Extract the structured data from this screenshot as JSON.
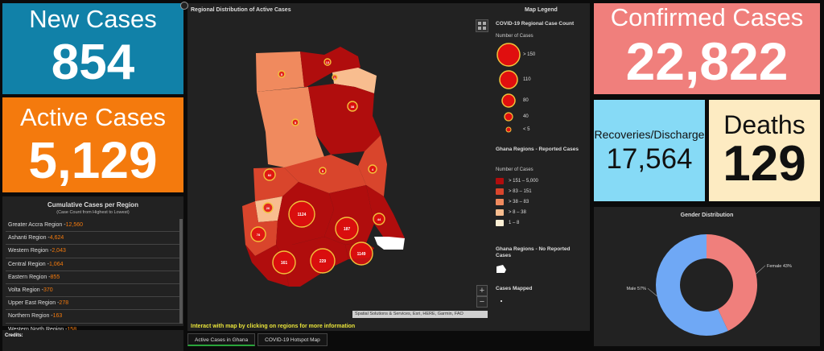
{
  "tiles": {
    "new_cases": {
      "label": "New Cases",
      "value": "854",
      "color": "#1181a8"
    },
    "active_cases": {
      "label": "Active Cases",
      "value": "5,129",
      "color": "#f47a0d"
    },
    "confirmed_cases": {
      "label": "Confirmed Cases",
      "value": "22,822",
      "color": "#f07f7c"
    },
    "recoveries": {
      "label": "Recoveries/Discharge",
      "value": "17,564",
      "color": "#86daf6"
    },
    "deaths": {
      "label": "Deaths",
      "value": "129",
      "color": "#fdebc2"
    }
  },
  "regions_panel": {
    "title": "Cumulative Cases per Region",
    "subtitle": "(Case Count from Highest to Lowest)",
    "rows": [
      {
        "name": "Greater Accra Region - ",
        "value": "12,560"
      },
      {
        "name": "Ashanti Region - ",
        "value": "4,624"
      },
      {
        "name": "Western Region - ",
        "value": "2,043"
      },
      {
        "name": "Central Region - ",
        "value": "1,064"
      },
      {
        "name": "Eastern Region - ",
        "value": "855"
      },
      {
        "name": "Volta Region - ",
        "value": "370"
      },
      {
        "name": "Upper East Region - ",
        "value": "278"
      },
      {
        "name": "Northern Region - ",
        "value": "163"
      },
      {
        "name": "Western North Region - ",
        "value": "158"
      }
    ]
  },
  "credits": {
    "label": "Credits:"
  },
  "map": {
    "title": "Regional Distribution of Active Cases",
    "interact_hint": "Interact with map by clicking on regions for more information",
    "attribution": "Spatial Solutions & Services, Esri, HERE, Garmin, FAO",
    "zoom_in": "+",
    "zoom_out": "−",
    "bubbles": [
      "1124",
      "187",
      "229",
      "161",
      "1149",
      "78",
      "26",
      "82",
      "44",
      "38",
      "5",
      "13",
      "4",
      "5",
      "5",
      "1"
    ]
  },
  "legend": {
    "title": "Map Legend",
    "count_heading": "COVID-19 Regional Case Count",
    "count_sub": "Number of Cases",
    "count_items": [
      "> 150",
      "110",
      "80",
      "40",
      "< 5"
    ],
    "reported_heading": "Ghana Regions - Reported Cases",
    "reported_sub": "Number of Cases",
    "reported_items": [
      {
        "label": "> 151 – 5,000",
        "color": "#b00d0d"
      },
      {
        "label": "> 83 – 151",
        "color": "#d9452c"
      },
      {
        "label": "> 38 – 83",
        "color": "#f08a5e"
      },
      {
        "label": "> 8 – 38",
        "color": "#f8bd8f"
      },
      {
        "label": "1 – 8",
        "color": "#fdf0d6"
      }
    ],
    "no_reported_heading": "Ghana Regions - No Reported Cases",
    "mapped_heading": "Cases Mapped"
  },
  "tabs": [
    "Active Cases in Ghana",
    "COVID-19 Hotspot Map"
  ],
  "gender": {
    "title": "Gender Distribution",
    "chart_data": {
      "type": "pie",
      "categories": [
        "Female",
        "Male"
      ],
      "values": [
        43,
        57
      ],
      "labels": [
        "Female 43%",
        "Male 57%"
      ],
      "colors": [
        "#f07f7c",
        "#6fa8f5"
      ]
    }
  }
}
